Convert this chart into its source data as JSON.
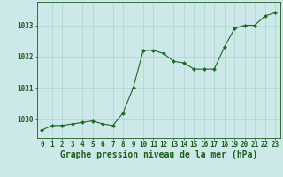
{
  "x": [
    0,
    1,
    2,
    3,
    4,
    5,
    6,
    7,
    8,
    9,
    10,
    11,
    12,
    13,
    14,
    15,
    16,
    17,
    18,
    19,
    20,
    21,
    22,
    23
  ],
  "y": [
    1029.65,
    1029.8,
    1029.8,
    1029.85,
    1029.9,
    1029.95,
    1029.85,
    1029.8,
    1030.2,
    1031.0,
    1032.2,
    1032.2,
    1032.1,
    1031.85,
    1031.8,
    1031.6,
    1031.6,
    1031.6,
    1032.3,
    1032.9,
    1033.0,
    1033.0,
    1033.3,
    1033.4
  ],
  "line_color": "#1a6b1a",
  "marker": "D",
  "marker_size": 2.0,
  "bg_color": "#cce8e8",
  "grid_color": "#aad4d4",
  "title": "Graphe pression niveau de la mer (hPa)",
  "xlabel_ticks": [
    "0",
    "1",
    "2",
    "3",
    "4",
    "5",
    "6",
    "7",
    "8",
    "9",
    "10",
    "11",
    "12",
    "13",
    "14",
    "15",
    "16",
    "17",
    "18",
    "19",
    "20",
    "21",
    "22",
    "23"
  ],
  "yticks": [
    1030,
    1031,
    1032,
    1033
  ],
  "ylim": [
    1029.4,
    1033.75
  ],
  "xlim": [
    -0.5,
    23.5
  ],
  "title_fontsize": 7.0,
  "tick_fontsize": 5.5,
  "title_color": "#1a5c1a",
  "tick_color": "#1a5c1a"
}
